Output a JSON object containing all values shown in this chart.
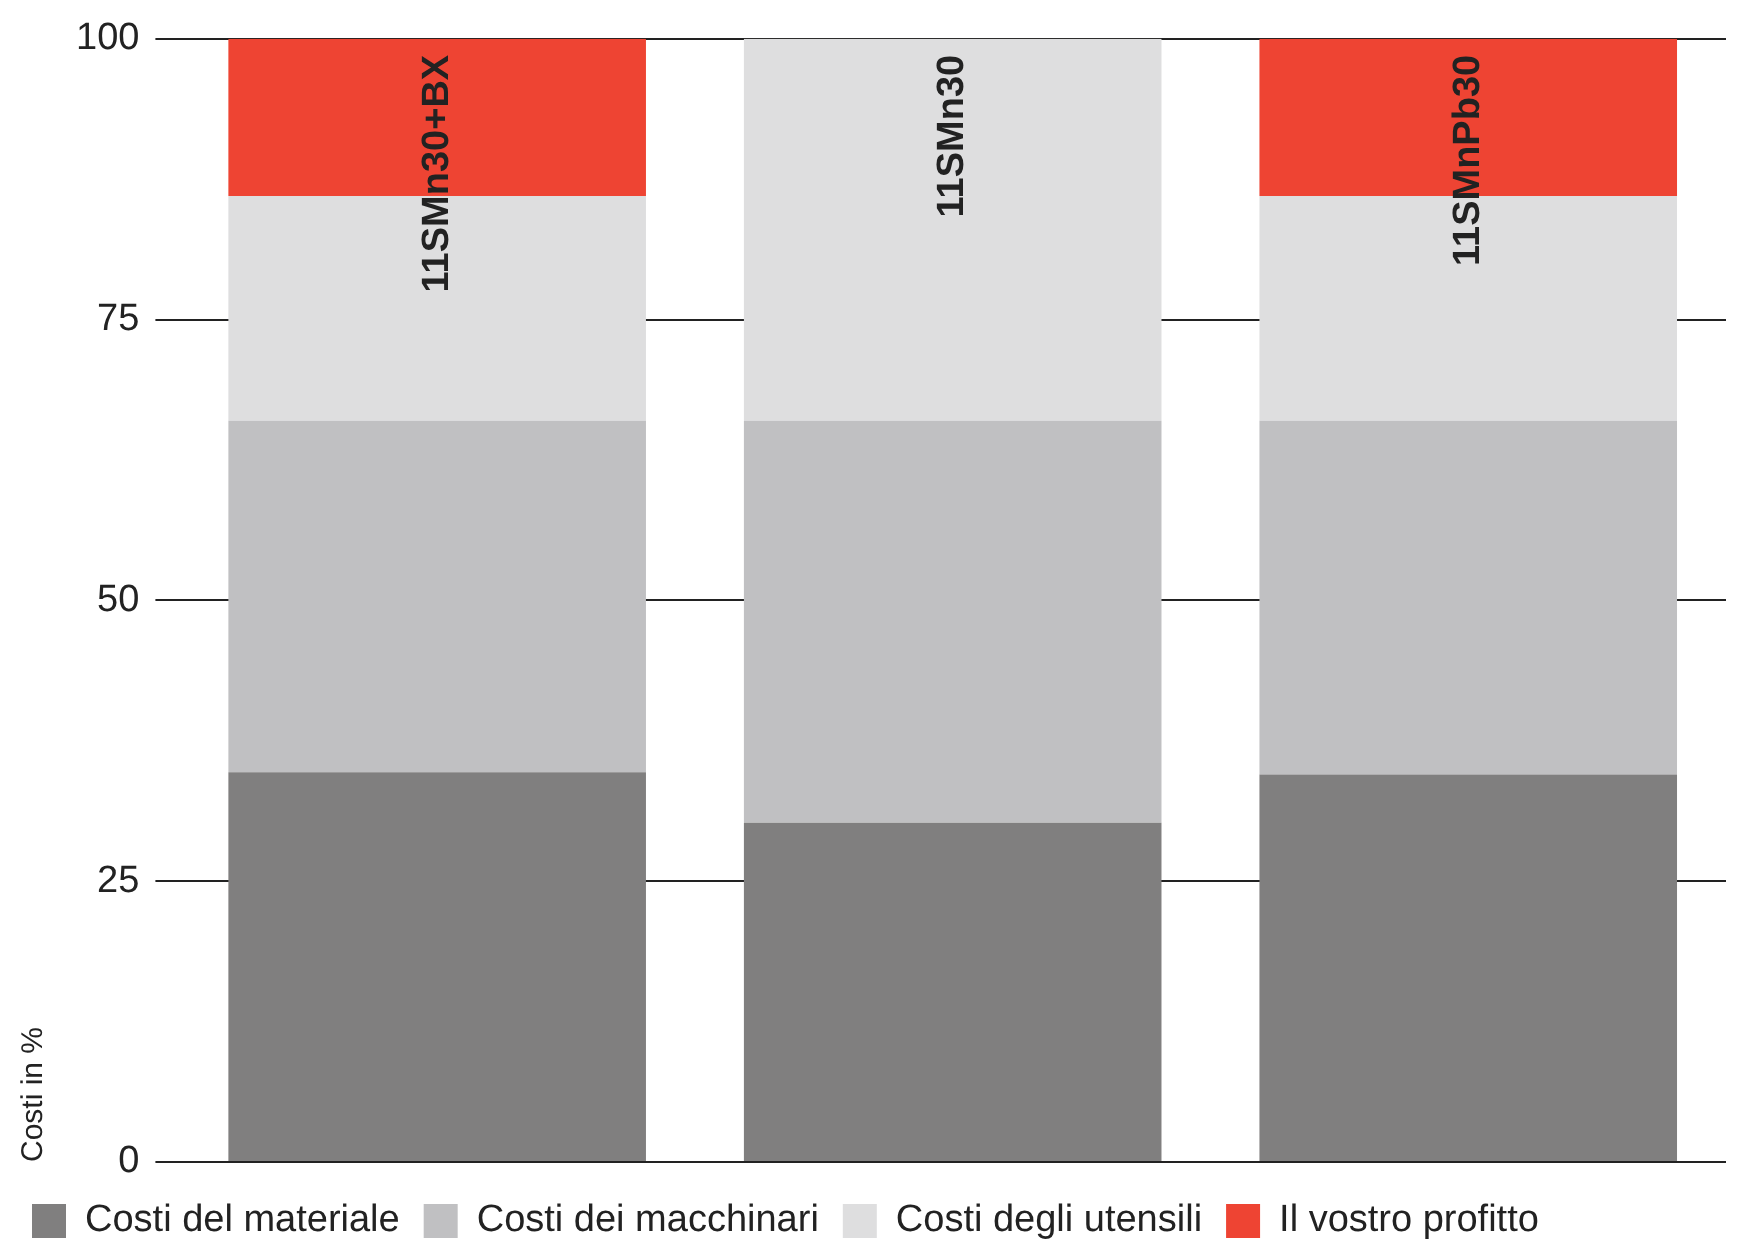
{
  "chart_data": {
    "type": "bar",
    "stacked": true,
    "ylabel": "Costi in %",
    "categories": [
      "11SMn30+BX",
      "11SMn30",
      "11SMnPb30"
    ],
    "series": [
      {
        "name": "Costi del materiale",
        "color": "#807f7f",
        "values": [
          34.7,
          30.2,
          34.5
        ]
      },
      {
        "name": "Costi dei macchinari",
        "color": "#c0c0c2",
        "values": [
          31.3,
          35.8,
          31.5
        ]
      },
      {
        "name": "Costi degli utensili",
        "color": "#dededf",
        "values": [
          20,
          34,
          20
        ]
      },
      {
        "name": "Il vostro profitto",
        "color": "#ee4433",
        "values": [
          14,
          0,
          14
        ]
      }
    ],
    "ylim": [
      0,
      100
    ],
    "yticks": [
      0,
      25,
      50,
      75,
      100
    ],
    "grid": "y",
    "legend": "bottom"
  }
}
